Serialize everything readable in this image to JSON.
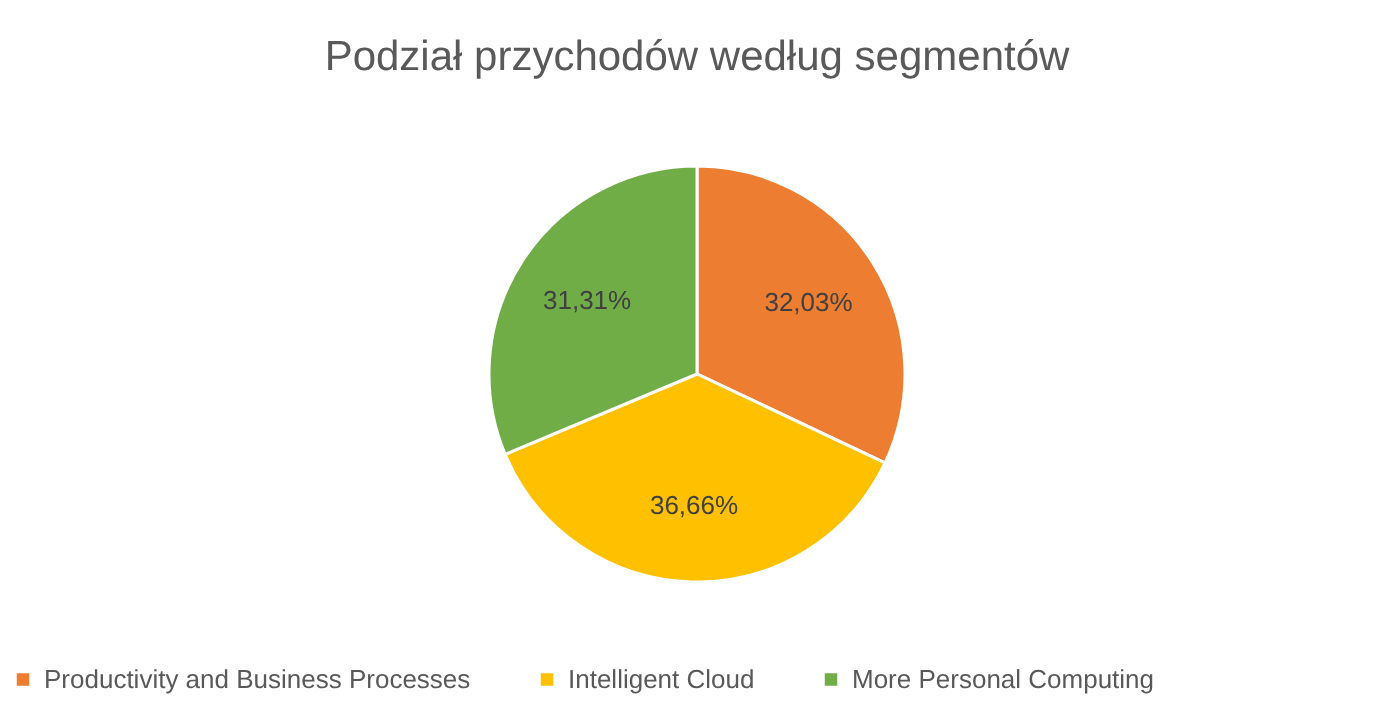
{
  "chart_data": {
    "type": "pie",
    "title": "Podział przychodów według segmentów",
    "categories": [
      "Productivity and Business Processes",
      "Intelligent Cloud",
      "More Personal Computing"
    ],
    "values": [
      32.03,
      36.66,
      31.31
    ],
    "colors": [
      "#ed7d31",
      "#ffc000",
      "#70ad47"
    ],
    "value_labels": [
      "32,03%",
      "36,66%",
      "31,31%"
    ],
    "legend": "bottom"
  }
}
